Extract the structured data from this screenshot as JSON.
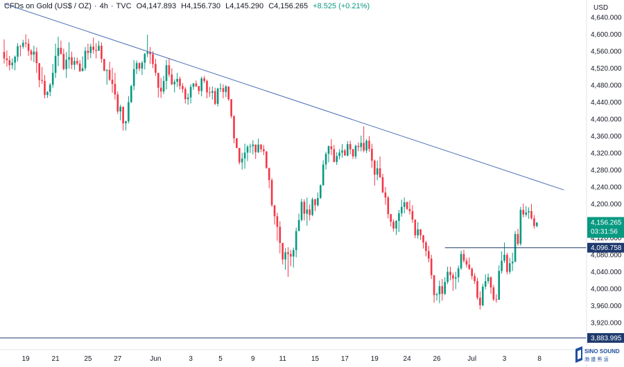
{
  "header": {
    "symbol": "CFDs on Gold (US$ / OZ)",
    "interval": "4h",
    "source": "TVC",
    "open": "O4,147.893",
    "high": "H4,156.730",
    "low": "L4,145.290",
    "close": "C4,156.265",
    "change": "+8.525 (+0.21%)"
  },
  "currency": "USD",
  "price_badge": {
    "value": "4,156.265",
    "countdown": "03:31:56",
    "color": "#089981"
  },
  "level_badge": {
    "value": "4,096.758",
    "color": "#1e3a6e"
  },
  "low_badge": {
    "value": "3,883.995",
    "color": "#1e3a6e"
  },
  "logo": {
    "text1": "SINO SOUND",
    "text2": "渤 盛 熊 运"
  },
  "colors": {
    "up": "#089981",
    "down": "#f23645",
    "line": "#4a6fb5"
  },
  "chart_data": {
    "type": "candlestick",
    "ylim": [
      3880,
      4660
    ],
    "y_ticks": [
      "4,640.000",
      "4,600.000",
      "4,560.000",
      "4,520.000",
      "4,480.000",
      "4,440.000",
      "4,400.000",
      "4,360.000",
      "4,320.000",
      "4,280.000",
      "4,240.000",
      "4,200.000",
      "4,160.000",
      "4,120.000",
      "4,080.000",
      "4,040.000",
      "4,000.000",
      "3,960.000",
      "3,920.000"
    ],
    "y_tick_values": [
      4640,
      4600,
      4560,
      4520,
      4480,
      4440,
      4400,
      4360,
      4320,
      4280,
      4240,
      4200,
      4160,
      4120,
      4080,
      4040,
      4000,
      3960,
      3920
    ],
    "x_ticks": [
      "19",
      "21",
      "25",
      "27",
      "Jun",
      "3",
      "5",
      "9",
      "11",
      "15",
      "17",
      "19",
      "24",
      "26",
      "Jul",
      "3",
      "8"
    ],
    "x_tick_index": [
      8,
      19,
      31,
      42,
      56,
      69,
      80,
      92,
      103,
      115,
      126,
      137,
      149,
      160,
      173,
      185,
      198
    ],
    "trendline": {
      "from": {
        "index": 0,
        "price": 4672
      },
      "to": {
        "index": 207,
        "price": 4233
      }
    },
    "level_line": {
      "from_index": 163,
      "price": 4096.758
    },
    "low_line": {
      "price": 3883.995
    },
    "candles": [
      [
        4558,
        4588,
        4531,
        4543
      ],
      [
        4543,
        4562,
        4524,
        4539
      ],
      [
        4539,
        4549,
        4515,
        4527
      ],
      [
        4527,
        4543,
        4518,
        4533
      ],
      [
        4533,
        4550,
        4515,
        4547
      ],
      [
        4547,
        4579,
        4536,
        4572
      ],
      [
        4572,
        4575,
        4548,
        4571
      ],
      [
        4571,
        4587,
        4566,
        4580
      ],
      [
        4580,
        4600,
        4569,
        4578
      ],
      [
        4578,
        4589,
        4549,
        4561
      ],
      [
        4561,
        4565,
        4538,
        4552
      ],
      [
        4552,
        4573,
        4534,
        4559
      ],
      [
        4559,
        4569,
        4509,
        4532
      ],
      [
        4532,
        4532,
        4475,
        4492
      ],
      [
        4492,
        4523,
        4483,
        4490
      ],
      [
        4490,
        4504,
        4449,
        4457
      ],
      [
        4457,
        4466,
        4450,
        4464
      ],
      [
        4464,
        4485,
        4454,
        4481
      ],
      [
        4481,
        4530,
        4474,
        4509
      ],
      [
        4509,
        4578,
        4497,
        4549
      ],
      [
        4549,
        4594,
        4525,
        4568
      ],
      [
        4568,
        4585,
        4552,
        4554
      ],
      [
        4554,
        4566,
        4515,
        4518
      ],
      [
        4518,
        4558,
        4497,
        4540
      ],
      [
        4540,
        4581,
        4519,
        4546
      ],
      [
        4546,
        4559,
        4518,
        4528
      ],
      [
        4528,
        4546,
        4516,
        4537
      ],
      [
        4537,
        4545,
        4527,
        4531
      ],
      [
        4531,
        4539,
        4511,
        4513
      ],
      [
        4513,
        4548,
        4513,
        4520
      ],
      [
        4520,
        4570,
        4514,
        4561
      ],
      [
        4561,
        4578,
        4540,
        4556
      ],
      [
        4556,
        4578,
        4544,
        4571
      ],
      [
        4571,
        4592,
        4554,
        4563
      ],
      [
        4563,
        4579,
        4543,
        4561
      ],
      [
        4561,
        4584,
        4561,
        4573
      ],
      [
        4573,
        4581,
        4533,
        4542
      ],
      [
        4542,
        4542,
        4513,
        4514
      ],
      [
        4514,
        4518,
        4481,
        4516
      ],
      [
        4516,
        4535,
        4490,
        4493
      ],
      [
        4493,
        4521,
        4462,
        4483
      ],
      [
        4483,
        4509,
        4446,
        4458
      ],
      [
        4458,
        4465,
        4412,
        4418
      ],
      [
        4418,
        4434,
        4397,
        4429
      ],
      [
        4429,
        4430,
        4373,
        4390
      ],
      [
        4390,
        4396,
        4373,
        4395
      ],
      [
        4395,
        4454,
        4390,
        4440
      ],
      [
        4440,
        4481,
        4438,
        4478
      ],
      [
        4478,
        4539,
        4468,
        4518
      ],
      [
        4518,
        4538,
        4506,
        4532
      ],
      [
        4532,
        4534,
        4513,
        4519
      ],
      [
        4519,
        4537,
        4504,
        4533
      ],
      [
        4533,
        4556,
        4517,
        4554
      ],
      [
        4554,
        4599,
        4546,
        4558
      ],
      [
        4558,
        4570,
        4530,
        4553
      ],
      [
        4553,
        4560,
        4520,
        4530
      ],
      [
        4530,
        4542,
        4502,
        4509
      ],
      [
        4509,
        4509,
        4451,
        4474
      ],
      [
        4474,
        4497,
        4450,
        4465
      ],
      [
        4465,
        4502,
        4459,
        4490
      ],
      [
        4490,
        4540,
        4470,
        4527
      ],
      [
        4527,
        4544,
        4499,
        4505
      ],
      [
        4505,
        4520,
        4480,
        4482
      ],
      [
        4482,
        4494,
        4463,
        4488
      ],
      [
        4488,
        4509,
        4476,
        4495
      ],
      [
        4495,
        4500,
        4470,
        4478
      ],
      [
        4478,
        4485,
        4462,
        4471
      ],
      [
        4471,
        4476,
        4437,
        4447
      ],
      [
        4447,
        4461,
        4434,
        4451
      ],
      [
        4451,
        4482,
        4437,
        4476
      ],
      [
        4476,
        4485,
        4469,
        4484
      ],
      [
        4484,
        4491,
        4475,
        4478
      ],
      [
        4478,
        4478,
        4458,
        4466
      ],
      [
        4466,
        4500,
        4454,
        4496
      ],
      [
        4496,
        4502,
        4485,
        4490
      ],
      [
        4490,
        4493,
        4449,
        4463
      ],
      [
        4463,
        4476,
        4452,
        4462
      ],
      [
        4462,
        4477,
        4446,
        4466
      ],
      [
        4466,
        4474,
        4433,
        4436
      ],
      [
        4436,
        4474,
        4430,
        4472
      ],
      [
        4472,
        4484,
        4464,
        4473
      ],
      [
        4473,
        4482,
        4449,
        4464
      ],
      [
        4464,
        4480,
        4452,
        4477
      ],
      [
        4477,
        4477,
        4443,
        4447
      ],
      [
        4447,
        4447,
        4402,
        4407
      ],
      [
        4407,
        4409,
        4343,
        4355
      ],
      [
        4355,
        4355,
        4331,
        4332
      ],
      [
        4332,
        4332,
        4293,
        4298
      ],
      [
        4298,
        4321,
        4281,
        4307
      ],
      [
        4307,
        4342,
        4283,
        4321
      ],
      [
        4321,
        4339,
        4301,
        4335
      ],
      [
        4335,
        4342,
        4320,
        4336
      ],
      [
        4336,
        4350,
        4317,
        4340
      ],
      [
        4340,
        4340,
        4306,
        4322
      ],
      [
        4322,
        4354,
        4320,
        4340
      ],
      [
        4340,
        4341,
        4322,
        4329
      ],
      [
        4329,
        4339,
        4315,
        4324
      ],
      [
        4324,
        4324,
        4283,
        4285
      ],
      [
        4285,
        4285,
        4237,
        4256
      ],
      [
        4256,
        4261,
        4193,
        4197
      ],
      [
        4197,
        4197,
        4151,
        4171
      ],
      [
        4171,
        4179,
        4113,
        4146
      ],
      [
        4146,
        4159,
        4083,
        4108
      ],
      [
        4108,
        4108,
        4057,
        4069
      ],
      [
        4069,
        4096,
        4045,
        4086
      ],
      [
        4086,
        4098,
        4028,
        4082
      ],
      [
        4082,
        4092,
        4053,
        4076
      ],
      [
        4076,
        4097,
        4050,
        4091
      ],
      [
        4091,
        4144,
        4074,
        4136
      ],
      [
        4136,
        4177,
        4136,
        4162
      ],
      [
        4162,
        4212,
        4159,
        4205
      ],
      [
        4205,
        4211,
        4161,
        4177
      ],
      [
        4177,
        4215,
        4149,
        4187
      ],
      [
        4187,
        4199,
        4161,
        4174
      ],
      [
        4174,
        4215,
        4171,
        4211
      ],
      [
        4211,
        4212,
        4183,
        4197
      ],
      [
        4197,
        4227,
        4194,
        4214
      ],
      [
        4214,
        4246,
        4212,
        4244
      ],
      [
        4244,
        4303,
        4243,
        4293
      ],
      [
        4293,
        4323,
        4281,
        4318
      ],
      [
        4318,
        4338,
        4298,
        4336
      ],
      [
        4336,
        4353,
        4315,
        4329
      ],
      [
        4329,
        4339,
        4298,
        4299
      ],
      [
        4299,
        4322,
        4292,
        4313
      ],
      [
        4313,
        4329,
        4305,
        4321
      ],
      [
        4321,
        4341,
        4309,
        4326
      ],
      [
        4326,
        4330,
        4314,
        4314
      ],
      [
        4314,
        4348,
        4312,
        4341
      ],
      [
        4341,
        4349,
        4317,
        4329
      ],
      [
        4329,
        4330,
        4306,
        4312
      ],
      [
        4312,
        4340,
        4306,
        4337
      ],
      [
        4337,
        4345,
        4324,
        4334
      ],
      [
        4334,
        4361,
        4324,
        4344
      ],
      [
        4344,
        4383,
        4322,
        4326
      ],
      [
        4326,
        4353,
        4320,
        4349
      ],
      [
        4349,
        4360,
        4323,
        4330
      ],
      [
        4330,
        4342,
        4285,
        4302
      ],
      [
        4302,
        4305,
        4243,
        4269
      ],
      [
        4269,
        4302,
        4256,
        4284
      ],
      [
        4284,
        4312,
        4261,
        4263
      ],
      [
        4263,
        4271,
        4226,
        4227
      ],
      [
        4227,
        4240,
        4198,
        4215
      ],
      [
        4215,
        4219,
        4166,
        4176
      ],
      [
        4176,
        4176,
        4147,
        4158
      ],
      [
        4158,
        4164,
        4135,
        4142
      ],
      [
        4142,
        4162,
        4127,
        4160
      ],
      [
        4160,
        4186,
        4134,
        4178
      ],
      [
        4178,
        4210,
        4170,
        4193
      ],
      [
        4193,
        4215,
        4178,
        4204
      ],
      [
        4204,
        4206,
        4186,
        4188
      ],
      [
        4188,
        4208,
        4175,
        4183
      ],
      [
        4183,
        4197,
        4155,
        4163
      ],
      [
        4163,
        4163,
        4119,
        4126
      ],
      [
        4126,
        4157,
        4118,
        4140
      ],
      [
        4140,
        4141,
        4115,
        4126
      ],
      [
        4126,
        4127,
        4095,
        4109
      ],
      [
        4109,
        4113,
        4076,
        4089
      ],
      [
        4089,
        4101,
        4062,
        4071
      ],
      [
        4071,
        4080,
        4023,
        4032
      ],
      [
        4032,
        4032,
        3967,
        3985
      ],
      [
        3985,
        3991,
        3972,
        3987
      ],
      [
        3987,
        4019,
        3966,
        4006
      ],
      [
        4006,
        4023,
        3972,
        3988
      ],
      [
        3988,
        4027,
        3985,
        4016
      ],
      [
        4016,
        4052,
        4011,
        4040
      ],
      [
        4040,
        4052,
        4020,
        4032
      ],
      [
        4032,
        4038,
        3995,
        4024
      ],
      [
        4024,
        4040,
        3999,
        4027
      ],
      [
        4027,
        4055,
        4015,
        4048
      ],
      [
        4048,
        4090,
        4045,
        4082
      ],
      [
        4082,
        4092,
        4061,
        4066
      ],
      [
        4066,
        4073,
        4050,
        4057
      ],
      [
        4057,
        4074,
        4044,
        4047
      ],
      [
        4047,
        4050,
        4022,
        4030
      ],
      [
        4030,
        4037,
        4011,
        4018
      ],
      [
        4018,
        4026,
        3974,
        3979
      ],
      [
        3979,
        3994,
        3951,
        3961
      ],
      [
        3961,
        4012,
        3959,
        4005
      ],
      [
        4005,
        4034,
        3999,
        4018
      ],
      [
        4018,
        4036,
        4012,
        4027
      ],
      [
        4027,
        4029,
        3988,
        4003
      ],
      [
        4003,
        4009,
        3971,
        3975
      ],
      [
        3975,
        3987,
        3967,
        3974
      ],
      [
        3974,
        4055,
        3974,
        4042
      ],
      [
        4042,
        4088,
        4036,
        4066
      ],
      [
        4066,
        4109,
        4061,
        4080
      ],
      [
        4080,
        4085,
        4034,
        4040
      ],
      [
        4040,
        4073,
        4035,
        4060
      ],
      [
        4060,
        4085,
        4042,
        4064
      ],
      [
        4064,
        4136,
        4062,
        4129
      ],
      [
        4129,
        4141,
        4101,
        4106
      ],
      [
        4106,
        4193,
        4101,
        4186
      ],
      [
        4186,
        4201,
        4168,
        4175
      ],
      [
        4175,
        4195,
        4170,
        4180
      ],
      [
        4180,
        4192,
        4165,
        4183
      ],
      [
        4183,
        4200,
        4163,
        4166
      ],
      [
        4166,
        4174,
        4142,
        4148
      ],
      [
        4148,
        4157,
        4145,
        4156
      ]
    ]
  }
}
